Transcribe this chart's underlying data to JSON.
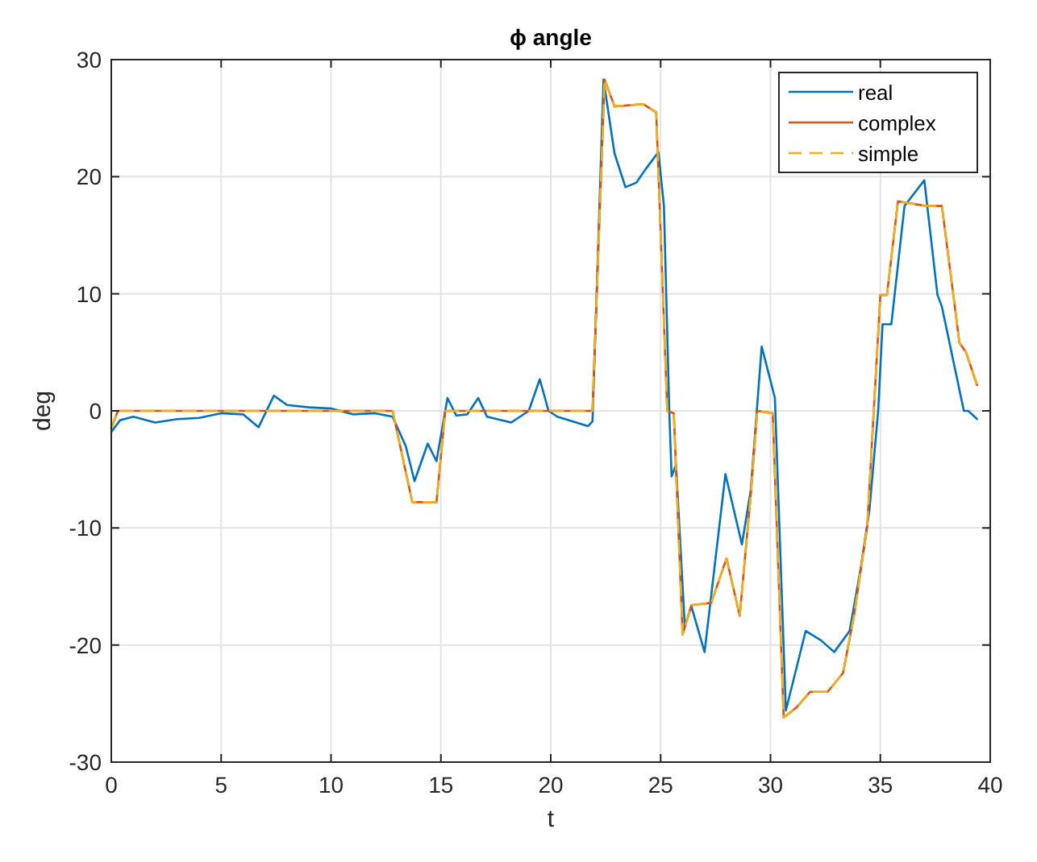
{
  "chart_data": {
    "type": "line",
    "title": "ϕ angle",
    "xlabel": "t",
    "ylabel": "deg",
    "xlim": [
      0,
      40
    ],
    "ylim": [
      -30,
      30
    ],
    "xticks": [
      0,
      5,
      10,
      15,
      20,
      25,
      30,
      35,
      40
    ],
    "yticks": [
      -30,
      -20,
      -10,
      0,
      10,
      20,
      30
    ],
    "grid": true,
    "legend": "top right",
    "series": [
      {
        "name": "real",
        "color": "#0072bd",
        "line_style": "solid",
        "x": [
          0,
          0.4,
          1,
          2,
          3,
          4,
          5,
          6,
          6.7,
          7.4,
          8,
          9,
          10,
          11,
          12,
          12.8,
          13.4,
          13.8,
          14.4,
          14.8,
          15.3,
          15.7,
          16.2,
          16.7,
          17.1,
          18.2,
          19,
          19.5,
          19.9,
          20.3,
          21.7,
          21.9,
          22.4,
          22.9,
          23.4,
          23.9,
          24.3,
          24.9,
          25.15,
          25.4,
          25.5,
          25.7,
          26.1,
          26.4,
          27,
          27.95,
          28.7,
          29.1,
          29.6,
          30.2,
          30.7,
          31.6,
          32.3,
          32.9,
          33.6,
          34.1,
          34.5,
          34.9,
          35.1,
          35.5,
          36.1,
          37,
          37.6,
          37.8,
          38.8,
          39,
          39.4
        ],
        "values": [
          -1.8,
          -0.8,
          -0.5,
          -1,
          -0.7,
          -0.6,
          -0.2,
          -0.3,
          -1.4,
          1.3,
          0.5,
          0.3,
          0.2,
          -0.3,
          -0.2,
          -0.5,
          -3,
          -6,
          -2.8,
          -4.3,
          1.1,
          -0.4,
          -0.3,
          1.1,
          -0.5,
          -1,
          0,
          2.7,
          0,
          -0.5,
          -1.3,
          -0.9,
          28.3,
          22,
          19.1,
          19.5,
          20.6,
          22.1,
          17.5,
          -0.4,
          -5.6,
          -4.6,
          -18.4,
          -16.7,
          -20.6,
          -5.4,
          -11.4,
          -6.8,
          5.5,
          1.1,
          -25.6,
          -18.8,
          -19.6,
          -20.6,
          -18.8,
          -13.5,
          -8.5,
          0,
          7.4,
          7.4,
          17.5,
          19.7,
          9.9,
          8.9,
          0,
          0,
          -0.7
        ]
      },
      {
        "name": "complex",
        "color": "#d95319",
        "line_style": "solid",
        "x": [
          0,
          0.3,
          12.8,
          13.7,
          14.8,
          15.2,
          21.9,
          22.45,
          22.9,
          24.2,
          24.8,
          25.3,
          25.6,
          26,
          26.4,
          27.3,
          28,
          28.6,
          29.1,
          29.4,
          30.1,
          30.6,
          31.2,
          31.8,
          32.6,
          33.3,
          33.8,
          34.4,
          35,
          35.3,
          35.8,
          37.1,
          37.8,
          38.6,
          38.9,
          39.4
        ],
        "values": [
          -1.5,
          0,
          0,
          -7.8,
          -7.8,
          0,
          0,
          28.3,
          26,
          26.2,
          25.5,
          0,
          -0.2,
          -19.1,
          -16.6,
          -16.4,
          -12.6,
          -17.5,
          -7.2,
          0,
          -0.2,
          -26.2,
          -25.3,
          -24,
          -24,
          -22.4,
          -17.5,
          -9.9,
          9.9,
          9.9,
          17.9,
          17.5,
          17.5,
          5.8,
          5,
          2.2
        ]
      },
      {
        "name": "simple",
        "color": "#edb120",
        "line_style": "dashed",
        "x": [
          0,
          0.3,
          12.8,
          13.7,
          14.8,
          15.2,
          21.9,
          22.45,
          22.9,
          24.2,
          24.8,
          25.3,
          25.6,
          26,
          26.4,
          27.3,
          28,
          28.6,
          29.1,
          29.4,
          30.1,
          30.6,
          31.2,
          31.8,
          32.6,
          33.3,
          33.8,
          34.4,
          35,
          35.3,
          35.8,
          37.1,
          37.8,
          38.6,
          38.9,
          39.4
        ],
        "values": [
          -1.5,
          0,
          0,
          -7.8,
          -7.8,
          0,
          0,
          28.3,
          26,
          26.2,
          25.5,
          0,
          -0.2,
          -19.1,
          -16.6,
          -16.4,
          -12.6,
          -17.5,
          -7.2,
          0,
          -0.2,
          -26.2,
          -25.3,
          -24,
          -24,
          -22.4,
          -17.5,
          -9.9,
          9.9,
          9.9,
          17.9,
          17.5,
          17.5,
          5.8,
          5,
          2.2
        ]
      }
    ]
  }
}
